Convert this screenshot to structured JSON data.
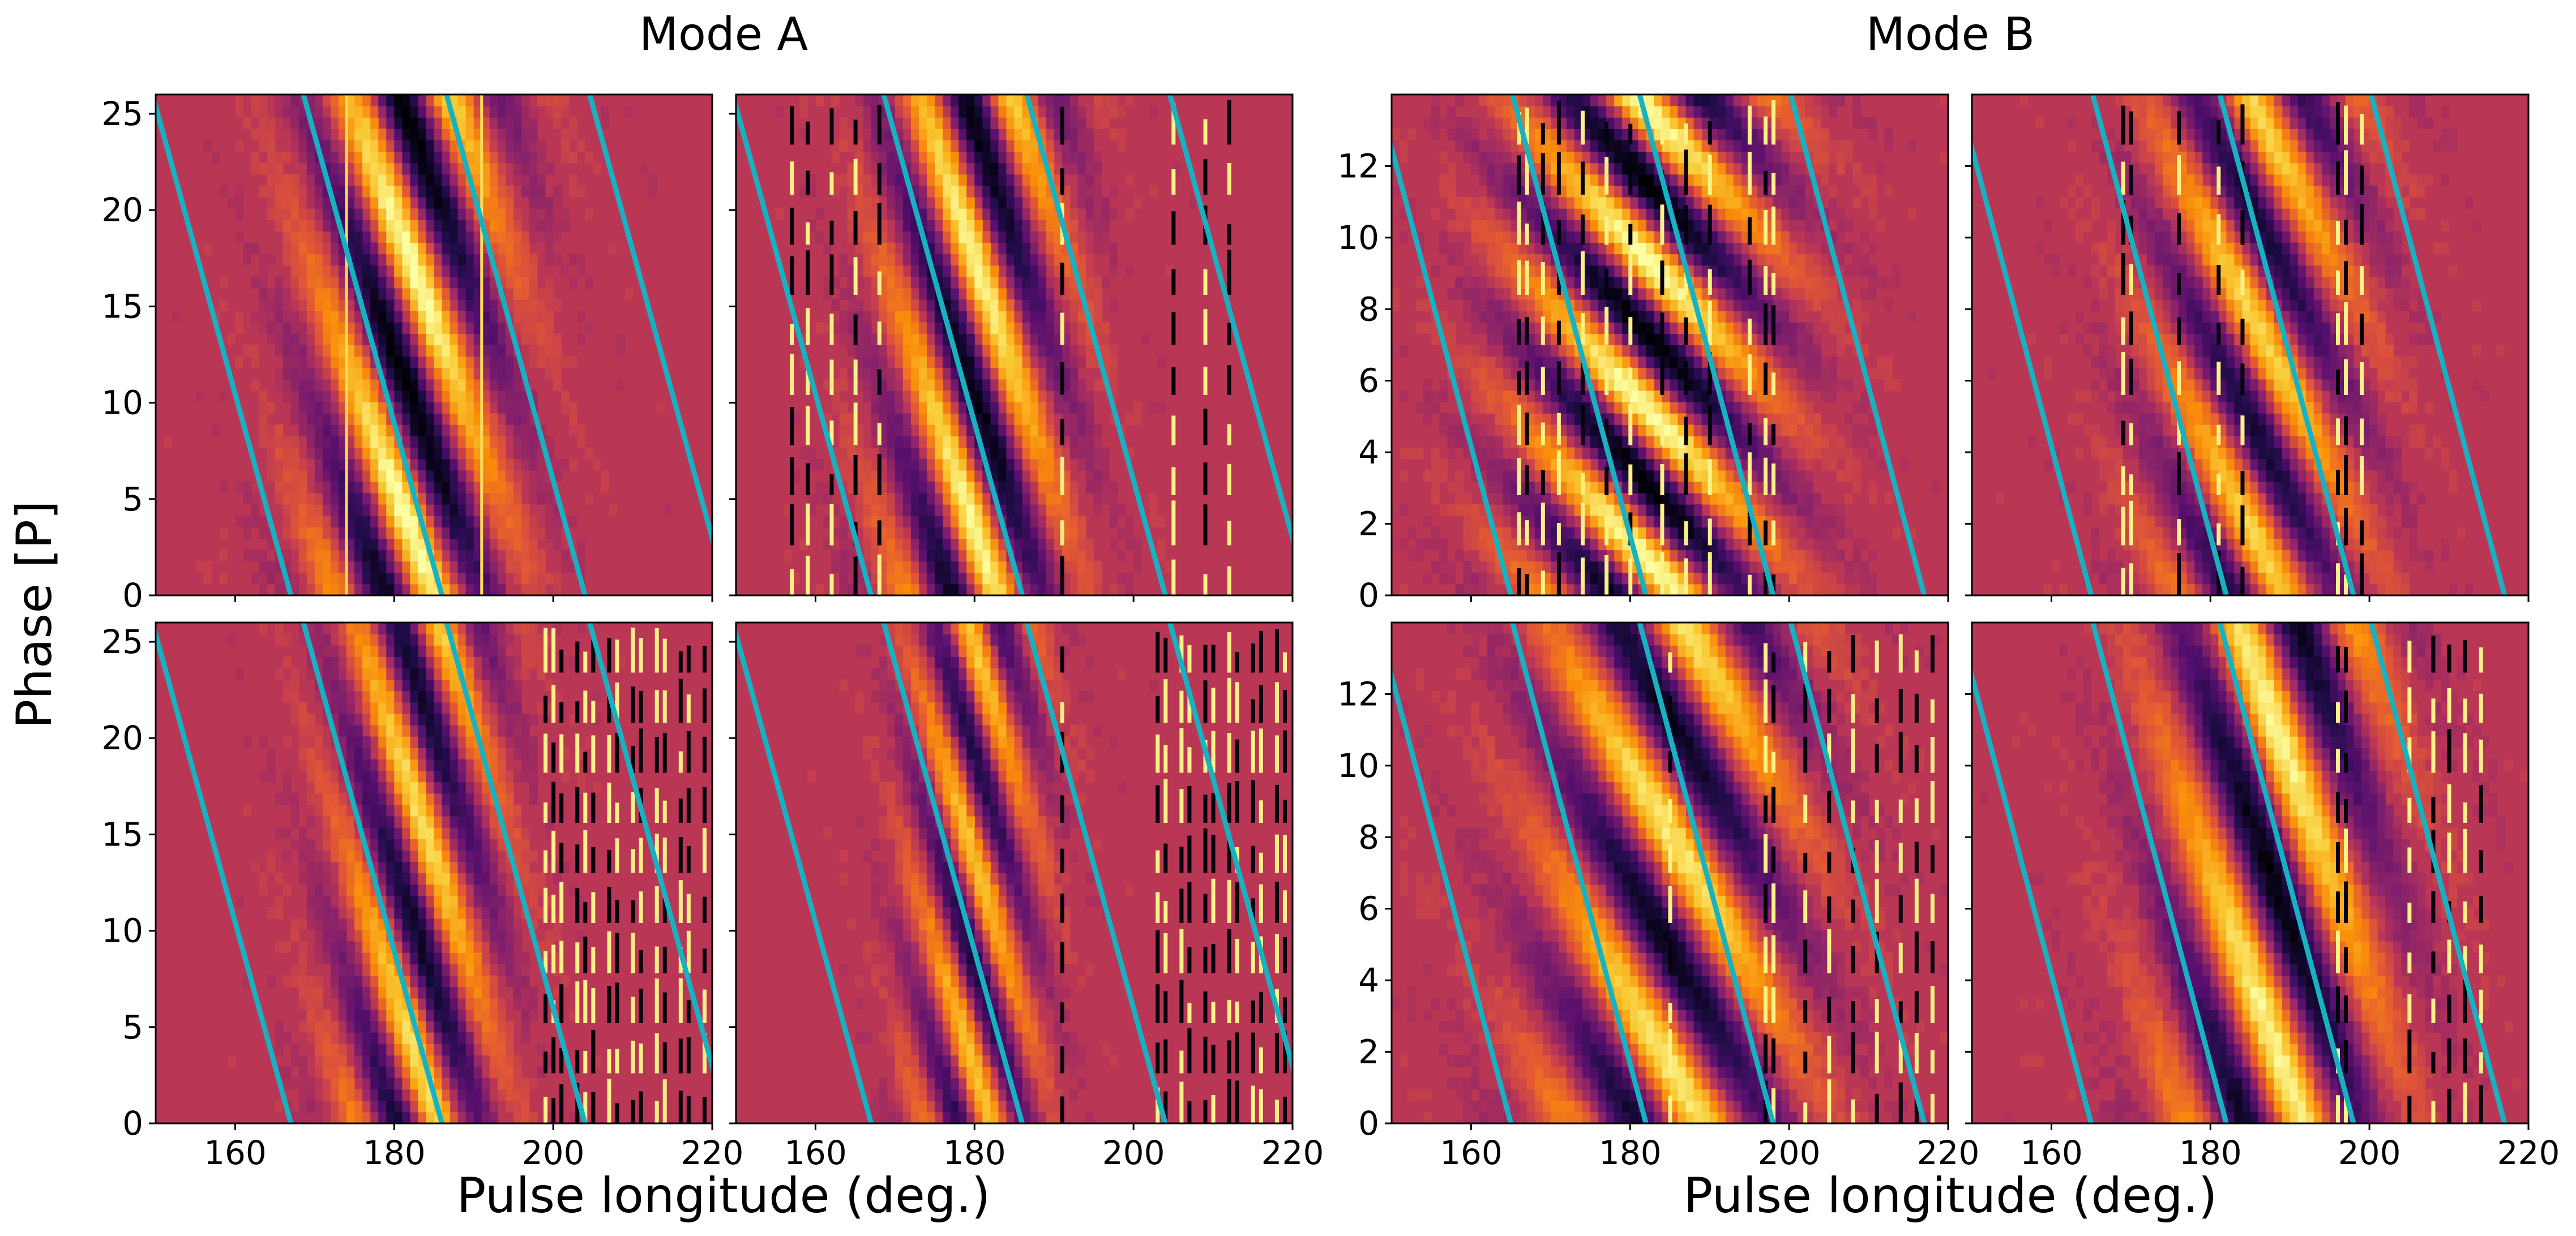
{
  "figure": {
    "suptitles": [
      "Mode A",
      "Mode B"
    ],
    "ylabel": "Phase [P]",
    "xlabel": "Pulse longitude (deg.)"
  },
  "colors": {
    "overlay_line": "#17b2c2",
    "colormap": "inferno"
  },
  "chart_data": [
    {
      "type": "heatmap",
      "mode": "Mode A",
      "row": 1,
      "col": 1,
      "xlim": [
        150,
        220
      ],
      "ylim": [
        0,
        26
      ],
      "yticks": [
        0,
        5,
        10,
        15,
        20,
        25
      ],
      "xticks": [
        160,
        180,
        200,
        220
      ],
      "show_xticklabels": false,
      "show_yticklabels": true,
      "pattern": {
        "center": 182,
        "width": 12,
        "drift_slope": -0.45,
        "period": 14,
        "contrast": 1.0,
        "edges": [
          174,
          191
        ]
      },
      "lines": {
        "slope_deg_per_P": -0.67,
        "intercepts_at_phase0": [
          167,
          186,
          204,
          222
        ]
      },
      "noise_columns": []
    },
    {
      "type": "heatmap",
      "mode": "Mode A",
      "row": 1,
      "col": 2,
      "xlim": [
        150,
        220
      ],
      "ylim": [
        0,
        26
      ],
      "yticks": [
        0,
        5,
        10,
        15,
        20,
        25
      ],
      "xticks": [
        160,
        180,
        200,
        220
      ],
      "show_xticklabels": false,
      "show_yticklabels": false,
      "pattern": {
        "center": 180,
        "width": 11,
        "drift_slope": -0.3,
        "period": 14,
        "contrast": 0.95,
        "edges": []
      },
      "lines": {
        "slope_deg_per_P": -0.67,
        "intercepts_at_phase0": [
          167,
          186,
          204,
          222
        ]
      },
      "noise_columns": [
        157,
        159,
        162,
        165,
        168,
        191,
        205,
        209,
        212
      ]
    },
    {
      "type": "heatmap",
      "mode": "Mode A",
      "row": 2,
      "col": 1,
      "xlim": [
        150,
        220
      ],
      "ylim": [
        0,
        26
      ],
      "yticks": [
        0,
        5,
        10,
        15,
        20,
        25
      ],
      "xticks": [
        160,
        180,
        200,
        220
      ],
      "show_xticklabels": true,
      "show_yticklabels": true,
      "pattern": {
        "center": 183,
        "width": 10,
        "drift_slope": -0.6,
        "period": 13,
        "contrast": 0.85,
        "edges": []
      },
      "lines": {
        "slope_deg_per_P": -0.67,
        "intercepts_at_phase0": [
          167,
          186,
          204,
          222
        ]
      },
      "noise_columns": [
        199,
        200,
        201,
        203,
        204,
        205,
        207,
        208,
        210,
        211,
        213,
        214,
        216,
        217,
        219
      ]
    },
    {
      "type": "heatmap",
      "mode": "Mode A",
      "row": 2,
      "col": 2,
      "xlim": [
        150,
        220
      ],
      "ylim": [
        0,
        26
      ],
      "yticks": [
        0,
        5,
        10,
        15,
        20,
        25
      ],
      "xticks": [
        160,
        180,
        200,
        220
      ],
      "show_xticklabels": true,
      "show_yticklabels": false,
      "pattern": {
        "center": 180,
        "width": 8,
        "drift_slope": -0.3,
        "period": 11,
        "contrast": 0.75,
        "edges": []
      },
      "lines": {
        "slope_deg_per_P": -0.67,
        "intercepts_at_phase0": [
          167,
          186,
          204,
          222
        ]
      },
      "noise_columns": [
        191,
        203,
        204,
        206,
        207,
        209,
        210,
        212,
        213,
        215,
        216,
        218,
        219
      ]
    },
    {
      "type": "heatmap",
      "mode": "Mode B",
      "row": 1,
      "col": 1,
      "xlim": [
        150,
        220
      ],
      "ylim": [
        0,
        14
      ],
      "yticks": [
        0,
        2,
        4,
        6,
        8,
        10,
        12
      ],
      "xticks": [
        160,
        180,
        200,
        220
      ],
      "show_xticklabels": false,
      "show_yticklabels": true,
      "pattern": {
        "center": 182,
        "width": 16,
        "drift_slope": -1.3,
        "period": 4.2,
        "contrast": 1.0,
        "edges": []
      },
      "lines": {
        "slope_deg_per_P": -1.2,
        "intercepts_at_phase0": [
          165,
          182,
          198,
          217
        ]
      },
      "noise_columns": [
        166,
        167,
        169,
        171,
        174,
        177,
        180,
        184,
        187,
        190,
        195,
        197,
        198
      ]
    },
    {
      "type": "heatmap",
      "mode": "Mode B",
      "row": 1,
      "col": 2,
      "xlim": [
        150,
        220
      ],
      "ylim": [
        0,
        14
      ],
      "yticks": [
        0,
        2,
        4,
        6,
        8,
        10,
        12
      ],
      "xticks": [
        160,
        180,
        200,
        220
      ],
      "show_xticklabels": false,
      "show_yticklabels": false,
      "pattern": {
        "center": 186,
        "width": 13,
        "drift_slope": -1.4,
        "period": 6,
        "contrast": 0.8,
        "edges": []
      },
      "lines": {
        "slope_deg_per_P": -1.2,
        "intercepts_at_phase0": [
          165,
          182,
          198,
          217
        ]
      },
      "noise_columns": [
        169,
        170,
        176,
        181,
        184,
        196,
        197,
        199
      ]
    },
    {
      "type": "heatmap",
      "mode": "Mode B",
      "row": 2,
      "col": 1,
      "xlim": [
        150,
        220
      ],
      "ylim": [
        0,
        14
      ],
      "yticks": [
        0,
        2,
        4,
        6,
        8,
        10,
        12
      ],
      "xticks": [
        160,
        180,
        200,
        220
      ],
      "show_xticklabels": true,
      "show_yticklabels": true,
      "pattern": {
        "center": 185,
        "width": 16,
        "drift_slope": -1.4,
        "period": 6.5,
        "contrast": 0.9,
        "edges": []
      },
      "lines": {
        "slope_deg_per_P": -1.2,
        "intercepts_at_phase0": [
          165,
          182,
          198,
          217
        ]
      },
      "noise_columns": [
        185,
        197,
        198,
        202,
        205,
        208,
        211,
        214,
        216,
        218
      ]
    },
    {
      "type": "heatmap",
      "mode": "Mode B",
      "row": 2,
      "col": 2,
      "xlim": [
        150,
        220
      ],
      "ylim": [
        0,
        14
      ],
      "yticks": [
        0,
        2,
        4,
        6,
        8,
        10,
        12
      ],
      "xticks": [
        160,
        180,
        200,
        220
      ],
      "show_xticklabels": true,
      "show_yticklabels": false,
      "pattern": {
        "center": 188,
        "width": 14,
        "drift_slope": -1.5,
        "period": 9,
        "contrast": 0.95,
        "edges": []
      },
      "lines": {
        "slope_deg_per_P": -1.2,
        "intercepts_at_phase0": [
          165,
          182,
          198,
          217
        ]
      },
      "noise_columns": [
        196,
        197,
        205,
        208,
        210,
        212,
        214
      ]
    }
  ]
}
